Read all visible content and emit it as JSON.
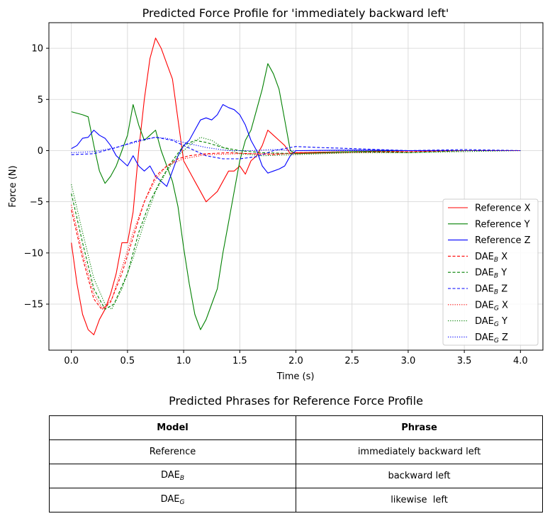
{
  "chart_data": {
    "type": "line",
    "title": "Predicted Force Profile for 'immediately backward left'",
    "xlabel": "Time (s)",
    "ylabel": "Force (N)",
    "xlim": [
      -0.2,
      4.2
    ],
    "ylim": [
      -19.5,
      12.5
    ],
    "xticks": [
      0.0,
      0.5,
      1.0,
      1.5,
      2.0,
      2.5,
      3.0,
      3.5,
      4.0
    ],
    "xtick_labels": [
      "0.0",
      "0.5",
      "1.0",
      "1.5",
      "2.0",
      "2.5",
      "3.0",
      "3.5",
      "4.0"
    ],
    "yticks": [
      -15,
      -10,
      -5,
      0,
      5,
      10
    ],
    "ytick_labels": [
      "−15",
      "−10",
      "−5",
      "0",
      "5",
      "10"
    ],
    "grid": true,
    "legend_position": "lower-right",
    "series": [
      {
        "name": "Reference X",
        "label_base": "Reference X",
        "label_sub": "",
        "label_suffix": "",
        "color": "#ff0000",
        "style": "solid",
        "points": [
          [
            0,
            -9
          ],
          [
            0.05,
            -13
          ],
          [
            0.1,
            -16
          ],
          [
            0.15,
            -17.5
          ],
          [
            0.2,
            -18
          ],
          [
            0.25,
            -16.5
          ],
          [
            0.3,
            -15.5
          ],
          [
            0.35,
            -14
          ],
          [
            0.4,
            -12
          ],
          [
            0.45,
            -9
          ],
          [
            0.5,
            -9
          ],
          [
            0.55,
            -6
          ],
          [
            0.6,
            0
          ],
          [
            0.65,
            5
          ],
          [
            0.7,
            9
          ],
          [
            0.75,
            11
          ],
          [
            0.8,
            10
          ],
          [
            0.85,
            8.5
          ],
          [
            0.9,
            7
          ],
          [
            0.95,
            3
          ],
          [
            1.0,
            -1
          ],
          [
            1.1,
            -3
          ],
          [
            1.15,
            -4
          ],
          [
            1.2,
            -5
          ],
          [
            1.25,
            -4.5
          ],
          [
            1.3,
            -4
          ],
          [
            1.35,
            -3
          ],
          [
            1.4,
            -2
          ],
          [
            1.45,
            -2
          ],
          [
            1.5,
            -1.5
          ],
          [
            1.55,
            -2.3
          ],
          [
            1.6,
            -1
          ],
          [
            1.65,
            -0.5
          ],
          [
            1.7,
            0.5
          ],
          [
            1.75,
            2
          ],
          [
            1.8,
            1.5
          ],
          [
            1.85,
            1
          ],
          [
            1.9,
            0.5
          ],
          [
            1.95,
            -0.3
          ],
          [
            2.0,
            -0.2
          ],
          [
            2.5,
            -0.1
          ],
          [
            3.0,
            0
          ],
          [
            3.5,
            0
          ],
          [
            4.0,
            0
          ]
        ]
      },
      {
        "name": "Reference Y",
        "label_base": "Reference Y",
        "label_sub": "",
        "label_suffix": "",
        "color": "#008000",
        "style": "solid",
        "points": [
          [
            0,
            3.8
          ],
          [
            0.1,
            3.5
          ],
          [
            0.15,
            3.3
          ],
          [
            0.2,
            0.5
          ],
          [
            0.25,
            -2
          ],
          [
            0.3,
            -3.2
          ],
          [
            0.35,
            -2.5
          ],
          [
            0.4,
            -1.5
          ],
          [
            0.45,
            0
          ],
          [
            0.5,
            1.5
          ],
          [
            0.55,
            4.5
          ],
          [
            0.6,
            2.5
          ],
          [
            0.65,
            1
          ],
          [
            0.7,
            1.5
          ],
          [
            0.75,
            2
          ],
          [
            0.8,
            0
          ],
          [
            0.85,
            -1.5
          ],
          [
            0.9,
            -3
          ],
          [
            0.95,
            -5.5
          ],
          [
            1.0,
            -9.5
          ],
          [
            1.05,
            -13
          ],
          [
            1.1,
            -16
          ],
          [
            1.15,
            -17.5
          ],
          [
            1.2,
            -16.5
          ],
          [
            1.25,
            -15
          ],
          [
            1.3,
            -13.5
          ],
          [
            1.35,
            -10
          ],
          [
            1.4,
            -7
          ],
          [
            1.45,
            -4
          ],
          [
            1.5,
            -1
          ],
          [
            1.55,
            1
          ],
          [
            1.6,
            2
          ],
          [
            1.65,
            4
          ],
          [
            1.7,
            6
          ],
          [
            1.75,
            8.5
          ],
          [
            1.8,
            7.5
          ],
          [
            1.85,
            6
          ],
          [
            1.9,
            3
          ],
          [
            1.95,
            0
          ],
          [
            2.0,
            -0.3
          ],
          [
            2.5,
            -0.1
          ],
          [
            3.0,
            0
          ],
          [
            3.5,
            0
          ],
          [
            4.0,
            0
          ]
        ]
      },
      {
        "name": "Reference Z",
        "label_base": "Reference Z",
        "label_sub": "",
        "label_suffix": "",
        "color": "#0000ff",
        "style": "solid",
        "points": [
          [
            0,
            0.2
          ],
          [
            0.05,
            0.5
          ],
          [
            0.1,
            1.2
          ],
          [
            0.15,
            1.3
          ],
          [
            0.2,
            2
          ],
          [
            0.25,
            1.5
          ],
          [
            0.3,
            1.2
          ],
          [
            0.35,
            0.5
          ],
          [
            0.4,
            -0.5
          ],
          [
            0.45,
            -1
          ],
          [
            0.5,
            -1.5
          ],
          [
            0.55,
            -0.5
          ],
          [
            0.6,
            -1.5
          ],
          [
            0.65,
            -2
          ],
          [
            0.7,
            -1.5
          ],
          [
            0.75,
            -2.5
          ],
          [
            0.8,
            -3
          ],
          [
            0.85,
            -3.5
          ],
          [
            0.9,
            -2
          ],
          [
            0.95,
            -0.5
          ],
          [
            1.0,
            0.5
          ],
          [
            1.05,
            1
          ],
          [
            1.1,
            2
          ],
          [
            1.15,
            3
          ],
          [
            1.2,
            3.2
          ],
          [
            1.25,
            3
          ],
          [
            1.3,
            3.5
          ],
          [
            1.35,
            4.5
          ],
          [
            1.4,
            4.2
          ],
          [
            1.45,
            4
          ],
          [
            1.5,
            3.5
          ],
          [
            1.55,
            2.5
          ],
          [
            1.6,
            1
          ],
          [
            1.65,
            0
          ],
          [
            1.7,
            -1.5
          ],
          [
            1.75,
            -2.2
          ],
          [
            1.8,
            -2
          ],
          [
            1.85,
            -1.8
          ],
          [
            1.9,
            -1.5
          ],
          [
            1.95,
            -0.5
          ],
          [
            2.0,
            0
          ],
          [
            2.5,
            0.05
          ],
          [
            3.0,
            0
          ],
          [
            3.5,
            0
          ],
          [
            4.0,
            0
          ]
        ]
      },
      {
        "name": "DAE_B X",
        "label_base": "DAE",
        "label_sub": "B",
        "label_suffix": " X",
        "color": "#ff0000",
        "style": "dashed",
        "points": [
          [
            0,
            -5.8
          ],
          [
            0.1,
            -10.5
          ],
          [
            0.2,
            -14.5
          ],
          [
            0.27,
            -15.5
          ],
          [
            0.35,
            -14.8
          ],
          [
            0.45,
            -12
          ],
          [
            0.55,
            -8.5
          ],
          [
            0.65,
            -5
          ],
          [
            0.75,
            -2.5
          ],
          [
            0.85,
            -1.5
          ],
          [
            0.95,
            -0.8
          ],
          [
            1.05,
            -0.5
          ],
          [
            1.2,
            -0.3
          ],
          [
            1.4,
            -0.2
          ],
          [
            1.6,
            -0.3
          ],
          [
            1.8,
            -0.4
          ],
          [
            2.0,
            -0.2
          ],
          [
            2.5,
            -0.1
          ],
          [
            3.0,
            -0.1
          ],
          [
            3.5,
            0
          ],
          [
            4.0,
            0
          ]
        ]
      },
      {
        "name": "DAE_B Y",
        "label_base": "DAE",
        "label_sub": "B",
        "label_suffix": " Y",
        "color": "#008000",
        "style": "dashed",
        "points": [
          [
            0,
            -4.2
          ],
          [
            0.1,
            -9
          ],
          [
            0.2,
            -13.5
          ],
          [
            0.3,
            -15.5
          ],
          [
            0.38,
            -15
          ],
          [
            0.5,
            -12
          ],
          [
            0.6,
            -8
          ],
          [
            0.7,
            -5
          ],
          [
            0.8,
            -2.8
          ],
          [
            0.9,
            -1
          ],
          [
            1.0,
            0.5
          ],
          [
            1.1,
            1
          ],
          [
            1.2,
            0.8
          ],
          [
            1.35,
            0.3
          ],
          [
            1.5,
            0
          ],
          [
            1.7,
            -0.2
          ],
          [
            2.0,
            -0.3
          ],
          [
            2.5,
            -0.1
          ],
          [
            3.0,
            -0.2
          ],
          [
            3.5,
            0
          ],
          [
            4.0,
            0
          ]
        ]
      },
      {
        "name": "DAE_B Z",
        "label_base": "DAE",
        "label_sub": "B",
        "label_suffix": " Z",
        "color": "#0000ff",
        "style": "dashed",
        "points": [
          [
            0,
            -0.4
          ],
          [
            0.2,
            -0.3
          ],
          [
            0.4,
            0.3
          ],
          [
            0.6,
            1
          ],
          [
            0.75,
            1.3
          ],
          [
            0.9,
            1
          ],
          [
            1.0,
            0.5
          ],
          [
            1.1,
            0
          ],
          [
            1.2,
            -0.5
          ],
          [
            1.35,
            -0.8
          ],
          [
            1.5,
            -0.8
          ],
          [
            1.65,
            -0.6
          ],
          [
            1.8,
            0
          ],
          [
            2.0,
            0.4
          ],
          [
            2.2,
            0.3
          ],
          [
            2.5,
            0.2
          ],
          [
            3.0,
            0
          ],
          [
            3.5,
            0.1
          ],
          [
            4.0,
            0
          ]
        ]
      },
      {
        "name": "DAE_G X",
        "label_base": "DAE",
        "label_sub": "G",
        "label_suffix": " X",
        "color": "#ff0000",
        "style": "dotted",
        "points": [
          [
            0,
            -5.3
          ],
          [
            0.1,
            -10
          ],
          [
            0.2,
            -14
          ],
          [
            0.28,
            -15.5
          ],
          [
            0.36,
            -14.5
          ],
          [
            0.45,
            -11.5
          ],
          [
            0.55,
            -8
          ],
          [
            0.65,
            -5
          ],
          [
            0.75,
            -2.8
          ],
          [
            0.85,
            -1.5
          ],
          [
            1.0,
            -0.8
          ],
          [
            1.2,
            -0.4
          ],
          [
            1.5,
            -0.3
          ],
          [
            2.0,
            -0.3
          ],
          [
            2.5,
            -0.2
          ],
          [
            3.0,
            -0.1
          ],
          [
            3.5,
            0
          ],
          [
            4.0,
            0
          ]
        ]
      },
      {
        "name": "DAE_G Y",
        "label_base": "DAE",
        "label_sub": "G",
        "label_suffix": " Y",
        "color": "#008000",
        "style": "dotted",
        "points": [
          [
            0,
            -3.3
          ],
          [
            0.1,
            -8
          ],
          [
            0.2,
            -12.5
          ],
          [
            0.3,
            -15
          ],
          [
            0.36,
            -15.5
          ],
          [
            0.45,
            -13.5
          ],
          [
            0.55,
            -10.5
          ],
          [
            0.65,
            -7
          ],
          [
            0.75,
            -4
          ],
          [
            0.85,
            -2
          ],
          [
            0.95,
            -0.5
          ],
          [
            1.05,
            0.5
          ],
          [
            1.15,
            1.3
          ],
          [
            1.25,
            1
          ],
          [
            1.35,
            0.3
          ],
          [
            1.5,
            -0.3
          ],
          [
            1.7,
            -0.5
          ],
          [
            2.0,
            -0.4
          ],
          [
            2.5,
            -0.2
          ],
          [
            3.0,
            -0.2
          ],
          [
            3.5,
            -0.1
          ],
          [
            4.0,
            0
          ]
        ]
      },
      {
        "name": "DAE_G Z",
        "label_base": "DAE",
        "label_sub": "G",
        "label_suffix": " Z",
        "color": "#0000ff",
        "style": "dotted",
        "points": [
          [
            0,
            -0.2
          ],
          [
            0.2,
            -0.1
          ],
          [
            0.4,
            0.3
          ],
          [
            0.6,
            0.9
          ],
          [
            0.75,
            1.3
          ],
          [
            0.85,
            1.2
          ],
          [
            1.0,
            0.8
          ],
          [
            1.2,
            0.3
          ],
          [
            1.4,
            0
          ],
          [
            1.6,
            0
          ],
          [
            1.8,
            0.1
          ],
          [
            2.0,
            0
          ],
          [
            2.5,
            0
          ],
          [
            3.0,
            0
          ],
          [
            3.5,
            0
          ],
          [
            4.0,
            0
          ]
        ]
      }
    ]
  },
  "table": {
    "title": "Predicted Phrases for Reference Force Profile",
    "header": {
      "model": "Model",
      "phrase": "Phrase"
    },
    "rows": [
      {
        "model_base": "Reference",
        "model_sub": "",
        "phrase": "immediately backward left"
      },
      {
        "model_base": "DAE",
        "model_sub": "B",
        "phrase": "backward left"
      },
      {
        "model_base": "DAE",
        "model_sub": "G",
        "phrase": "likewise  left"
      }
    ]
  }
}
